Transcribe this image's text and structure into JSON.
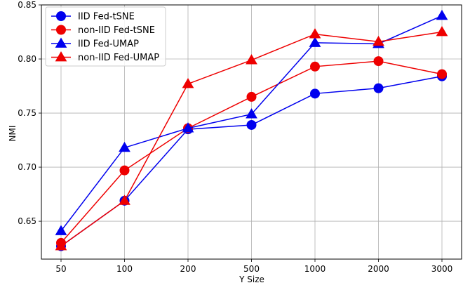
{
  "chart_data": {
    "type": "line",
    "title": "",
    "xlabel": "Y Size",
    "ylabel": "NMI",
    "categories": [
      "50",
      "100",
      "200",
      "500",
      "1000",
      "2000",
      "3000"
    ],
    "ylim": [
      0.615,
      0.85
    ],
    "yticks": [
      "0.65",
      "0.70",
      "0.75",
      "0.80",
      "0.85"
    ],
    "grid": true,
    "legend_position": "top-left",
    "series": [
      {
        "name": "IID Fed-tSNE",
        "color": "#0000ee",
        "marker": "circle",
        "values": [
          0.627,
          0.669,
          0.735,
          0.739,
          0.768,
          0.773,
          0.784
        ]
      },
      {
        "name": "non-IID Fed-tSNE",
        "color": "#ee0000",
        "marker": "circle",
        "values": [
          0.63,
          0.697,
          0.736,
          0.765,
          0.793,
          0.798,
          0.786
        ]
      },
      {
        "name": "IID Fed-UMAP",
        "color": "#0000ee",
        "marker": "triangle",
        "values": [
          0.641,
          0.718,
          0.736,
          0.749,
          0.815,
          0.814,
          0.84
        ]
      },
      {
        "name": "non-IID Fed-UMAP",
        "color": "#ee0000",
        "marker": "triangle",
        "values": [
          0.627,
          0.669,
          0.777,
          0.799,
          0.823,
          0.816,
          0.825
        ]
      }
    ]
  }
}
